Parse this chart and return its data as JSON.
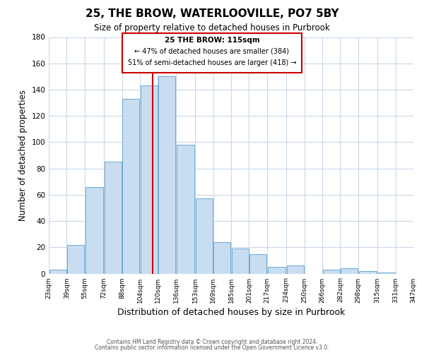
{
  "title": "25, THE BROW, WATERLOOVILLE, PO7 5BY",
  "subtitle": "Size of property relative to detached houses in Purbrook",
  "xlabel": "Distribution of detached houses by size in Purbrook",
  "ylabel": "Number of detached properties",
  "bar_left_edges": [
    23,
    39,
    55,
    72,
    88,
    104,
    120,
    136,
    153,
    169,
    185,
    201,
    217,
    234,
    250,
    266,
    282,
    298,
    315,
    331
  ],
  "bar_widths": [
    16,
    16,
    17,
    16,
    16,
    16,
    16,
    17,
    16,
    16,
    16,
    16,
    17,
    16,
    16,
    16,
    16,
    17,
    16,
    16
  ],
  "bar_heights": [
    3,
    22,
    66,
    85,
    133,
    143,
    150,
    98,
    57,
    24,
    19,
    15,
    5,
    6,
    0,
    3,
    4,
    2,
    1,
    0
  ],
  "bar_color": "#c9ddf0",
  "bar_edgecolor": "#6aaad4",
  "vline_x": 115,
  "vline_color": "#cc0000",
  "annotation_title": "25 THE BROW: 115sqm",
  "annotation_line1": "← 47% of detached houses are smaller (384)",
  "annotation_line2": "51% of semi-detached houses are larger (418) →",
  "xlim": [
    23,
    347
  ],
  "ylim": [
    0,
    180
  ],
  "yticks": [
    0,
    20,
    40,
    60,
    80,
    100,
    120,
    140,
    160,
    180
  ],
  "xtick_labels": [
    "23sqm",
    "39sqm",
    "55sqm",
    "72sqm",
    "88sqm",
    "104sqm",
    "120sqm",
    "136sqm",
    "153sqm",
    "169sqm",
    "185sqm",
    "201sqm",
    "217sqm",
    "234sqm",
    "250sqm",
    "266sqm",
    "282sqm",
    "298sqm",
    "315sqm",
    "331sqm",
    "347sqm"
  ],
  "xtick_positions": [
    23,
    39,
    55,
    72,
    88,
    104,
    120,
    136,
    153,
    169,
    185,
    201,
    217,
    234,
    250,
    266,
    282,
    298,
    315,
    331,
    347
  ],
  "footer_line1": "Contains HM Land Registry data © Crown copyright and database right 2024.",
  "footer_line2": "Contains public sector information licensed under the Open Government Licence v3.0.",
  "background_color": "#ffffff",
  "grid_color": "#c8d8e8"
}
